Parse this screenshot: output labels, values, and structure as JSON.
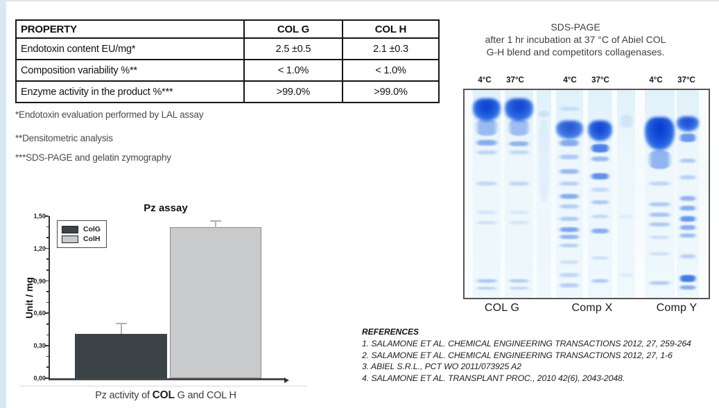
{
  "panel": {
    "table": {
      "headers": [
        "PROPERTY",
        "COL G",
        "COL H"
      ],
      "rows": [
        [
          "Endotoxin content EU/mg*",
          "2.5 ±0.5",
          "2.1 ±0.3"
        ],
        [
          "Composition variability %**",
          "< 1.0%",
          "< 1.0%"
        ],
        [
          "Enzyme activity in the product %***",
          ">99.0%",
          ">99.0%"
        ]
      ]
    },
    "footnotes": [
      "*Endotoxin evaluation performed by LAL assay",
      "**Densitometric analysis",
      "***SDS-PAGE and gelatin zymography"
    ],
    "references": {
      "title": "REFERENCES",
      "items": [
        "1.  SALAMONE  ET AL. CHEMICAL ENGINEERING TRANSACTIONS 2012, 27, 259-264",
        "2. SALAMONE  ET AL. CHEMICAL ENGINEERING TRANSACTIONS 2012, 27, 1-6",
        "3. ABIEL S.R.L.,  PCT WO 2011/073925 A2",
        "4. SALAMONE ET AL. TRANSPLANT PROC., 2010 42(6), 2043-2048."
      ]
    }
  },
  "chart_data": {
    "type": "bar",
    "title": "Pz assay",
    "categories": [
      "ColG",
      "ColH"
    ],
    "values": [
      0.41,
      1.4
    ],
    "error_bars": [
      0.1,
      0.07
    ],
    "ylabel": "Unit / mg",
    "xlabel": "",
    "ylim": [
      0,
      1.5
    ],
    "ytick_step": 0.3,
    "ytick_labels": [
      "0,00",
      "0,30",
      "0,60",
      "0,90",
      "1,20",
      "1,50"
    ],
    "grid": false,
    "legend_position": "upper-left",
    "series_colors": {
      "ColG": "#3b4347",
      "ColH": "#c9cacb"
    },
    "error_color": "#b0b0b0",
    "caption": {
      "prefix": "Pz activity of ",
      "bold": "COL",
      "suffix": " G and COL H"
    }
  },
  "gel": {
    "caption_lines": [
      "SDS-PAGE",
      "after 1 hr incubation at 37 °C of Abiel COL",
      "G-H blend and competitors collagenases."
    ],
    "temp_labels": [
      "4°C",
      "37°C",
      "4°C",
      "37°C",
      "4°C",
      "37°C"
    ],
    "group_labels": [
      "COL G",
      "Comp X",
      "Comp Y"
    ],
    "band_color": "#2161e0",
    "lanes": [
      {
        "x": 3.4,
        "w": 11.5,
        "bands": [
          [
            4,
            11,
            0.97,
            1
          ],
          [
            14,
            8,
            0.4,
            0
          ],
          [
            24,
            2.6,
            0.5,
            0
          ],
          [
            29,
            2,
            0.22,
            0
          ],
          [
            44,
            2,
            0.2,
            0
          ],
          [
            58,
            1.8,
            0.12,
            0
          ],
          [
            63,
            1.8,
            0.15,
            0
          ],
          [
            91,
            1.7,
            0.32,
            0
          ],
          [
            94.5,
            1.5,
            0.25,
            0
          ]
        ]
      },
      {
        "x": 16.5,
        "w": 11.5,
        "bands": [
          [
            4,
            11,
            0.95,
            1
          ],
          [
            14,
            8,
            0.38,
            0
          ],
          [
            24.5,
            2.6,
            0.45,
            0
          ],
          [
            29,
            2,
            0.2,
            0
          ],
          [
            44,
            2,
            0.22,
            0
          ],
          [
            58,
            1.8,
            0.1,
            0
          ],
          [
            63,
            1.8,
            0.13,
            0
          ],
          [
            91,
            1.7,
            0.28,
            0
          ],
          [
            94.5,
            1.5,
            0.22,
            0
          ]
        ]
      },
      {
        "x": 29.5,
        "w": 6,
        "bands": [
          [
            10,
            3,
            0.12,
            0
          ],
          [
            14,
            40,
            0.05,
            0
          ]
        ]
      },
      {
        "x": 37.5,
        "w": 11,
        "bands": [
          [
            8,
            2,
            0.15,
            0
          ],
          [
            14.5,
            9,
            0.85,
            1
          ],
          [
            24,
            3,
            0.5,
            0
          ],
          [
            31,
            2.2,
            0.3,
            0
          ],
          [
            38,
            2.2,
            0.42,
            0
          ],
          [
            44,
            2,
            0.25,
            0
          ],
          [
            50,
            2.4,
            0.5,
            0
          ],
          [
            55,
            2,
            0.28,
            0
          ],
          [
            61,
            2,
            0.3,
            0
          ],
          [
            66,
            2.2,
            0.55,
            0
          ],
          [
            69.5,
            2,
            0.45,
            0
          ],
          [
            74,
            1.8,
            0.28,
            0
          ],
          [
            82,
            1.8,
            0.15,
            0
          ],
          [
            88,
            2,
            0.22,
            0
          ],
          [
            93,
            2,
            0.28,
            0
          ]
        ]
      },
      {
        "x": 50.5,
        "w": 10,
        "bands": [
          [
            14.5,
            10,
            0.95,
            1
          ],
          [
            26,
            4,
            0.8,
            0
          ],
          [
            32,
            2.2,
            0.4,
            0
          ],
          [
            40,
            3,
            0.7,
            0
          ],
          [
            47,
            2,
            0.2,
            0
          ],
          [
            53,
            2,
            0.3,
            0
          ],
          [
            60,
            1.8,
            0.2,
            0
          ],
          [
            66.5,
            2.4,
            0.5,
            0
          ],
          [
            80,
            1.8,
            0.15,
            0
          ],
          [
            91,
            1.8,
            0.3,
            0
          ]
        ]
      },
      {
        "x": 62.5,
        "w": 7.5,
        "bands": [
          [
            12,
            6,
            0.1,
            0
          ],
          [
            60,
            2,
            0.07,
            0
          ],
          [
            88,
            2,
            0.08,
            0
          ]
        ]
      },
      {
        "x": 74,
        "w": 12,
        "bands": [
          [
            13,
            16,
            1,
            1
          ],
          [
            29,
            9,
            0.45,
            0
          ],
          [
            44,
            2,
            0.22,
            0
          ],
          [
            54,
            2,
            0.3,
            0
          ],
          [
            59,
            2,
            0.35,
            0
          ],
          [
            63.5,
            2,
            0.3,
            0
          ],
          [
            70,
            1.8,
            0.15,
            0
          ],
          [
            78,
            1.8,
            0.15,
            0
          ],
          [
            92,
            1.8,
            0.3,
            0
          ]
        ]
      },
      {
        "x": 87,
        "w": 9,
        "bands": [
          [
            12.5,
            7.5,
            0.9,
            1
          ],
          [
            21,
            4,
            0.65,
            0
          ],
          [
            33,
            2,
            0.3,
            0
          ],
          [
            41,
            2,
            0.25,
            0
          ],
          [
            51,
            2.4,
            0.45,
            0
          ],
          [
            55.5,
            2.4,
            0.5,
            0
          ],
          [
            60.5,
            2.8,
            0.65,
            0
          ],
          [
            65,
            2.4,
            0.5,
            0
          ],
          [
            69,
            2,
            0.4,
            0
          ],
          [
            79,
            2,
            0.25,
            0
          ],
          [
            89,
            3.4,
            0.85,
            0
          ],
          [
            94,
            2,
            0.5,
            0
          ]
        ]
      }
    ]
  }
}
